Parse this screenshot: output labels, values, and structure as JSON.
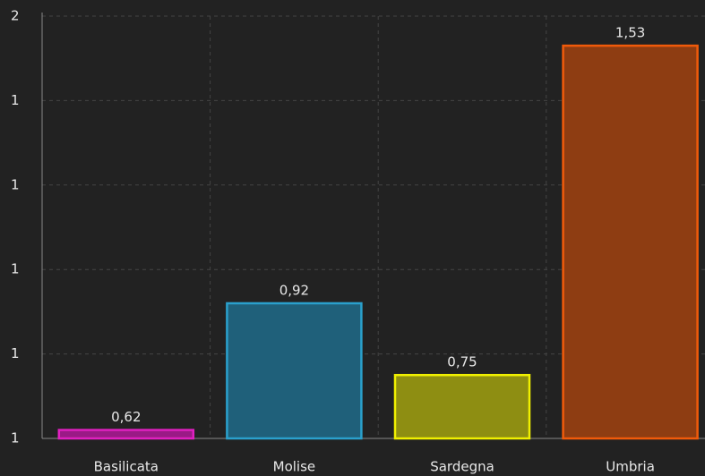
{
  "chart_data": {
    "type": "bar",
    "categories": [
      "Basilicata",
      "Molise",
      "Sardegna",
      "Umbria"
    ],
    "values": [
      0.62,
      0.92,
      0.75,
      1.53
    ],
    "value_labels": [
      "0,62",
      "0,92",
      "0,75",
      "1,53"
    ],
    "colors": [
      "#e020c0",
      "#2aa0cc",
      "#f0f000",
      "#f05a0a"
    ],
    "fill_colors": [
      "#9a1a86",
      "#1f607a",
      "#8e8e12",
      "#8e3d12"
    ],
    "ylim": [
      0.6,
      1.6
    ],
    "yticks": [
      {
        "value": 0.6,
        "label": "1"
      },
      {
        "value": 0.8,
        "label": "1"
      },
      {
        "value": 1.0,
        "label": "1"
      },
      {
        "value": 1.2,
        "label": "1"
      },
      {
        "value": 1.4,
        "label": "1"
      },
      {
        "value": 1.6,
        "label": "2"
      }
    ],
    "grid": true
  }
}
